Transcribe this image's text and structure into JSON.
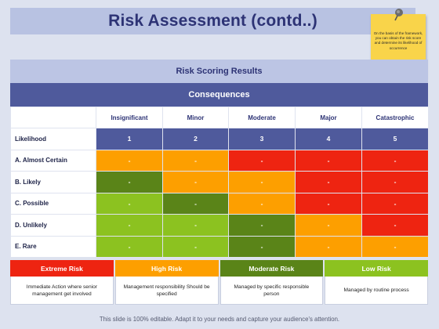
{
  "title": "Risk Assessment (contd..)",
  "note": "On the basis of the framework, you can obtain the risk score and determine its likelihood of occurrence",
  "section_title": "Risk Scoring Results",
  "consequences_label": "Consequences",
  "consequence_headers": [
    "Insignificant",
    "Minor",
    "Moderate",
    "Major",
    "Catastrophic"
  ],
  "likelihood_label": "Likelihood",
  "scores": [
    "1",
    "2",
    "3",
    "4",
    "5"
  ],
  "rows": [
    {
      "label": "A. Almost Certain",
      "cells": [
        "-",
        "-",
        "-",
        "-",
        "-"
      ]
    },
    {
      "label": "B. Likely",
      "cells": [
        "-",
        "-",
        "-",
        "-",
        "-"
      ]
    },
    {
      "label": "C. Possible",
      "cells": [
        "-",
        "-",
        "-",
        "-",
        "-"
      ]
    },
    {
      "label": "D. Unlikely",
      "cells": [
        "-",
        "-",
        "-",
        "-",
        "-"
      ]
    },
    {
      "label": "E. Rare",
      "cells": [
        "-",
        "-",
        "-",
        "-",
        "-"
      ]
    }
  ],
  "legend": [
    {
      "title": "Extreme Risk",
      "text": "Immediate Action where senior management get involved"
    },
    {
      "title": "High Risk",
      "text": "Management responsibility Should be specified"
    },
    {
      "title": "Moderate Risk",
      "text": "Managed by specific responsible person"
    },
    {
      "title": "Low Risk",
      "text": "Managed by routine process"
    }
  ],
  "colors": {
    "extreme": "#ee2411",
    "high": "#fd9f00",
    "moderate": "#5a8418",
    "low": "#8cc220",
    "header": "#4f5a9c"
  },
  "footer": "This slide is 100% editable. Adapt it to your needs and capture your audience's attention."
}
